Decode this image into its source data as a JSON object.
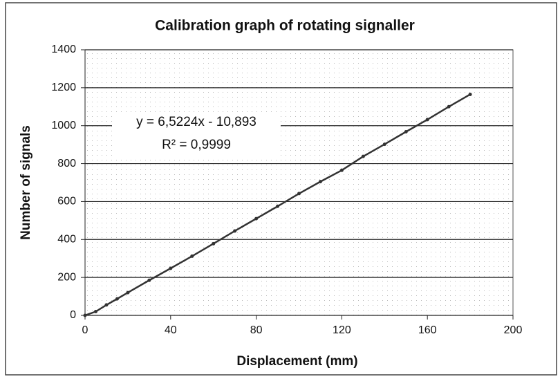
{
  "chart_data": {
    "type": "scatter",
    "title": "Calibration graph of rotating signaller",
    "x_label": "Displacement (mm)",
    "y_label": "Number of signals",
    "equation": "y = 6,5224x - 10,893",
    "r_squared": "R² = 0,9999",
    "x": [
      0,
      5,
      10,
      15,
      20,
      30,
      40,
      50,
      60,
      70,
      80,
      90,
      100,
      110,
      120,
      130,
      140,
      150,
      160,
      170,
      180
    ],
    "series": [
      {
        "color": "#333333",
        "values": [
          0,
          20,
          55,
          87,
          120,
          185,
          248,
          312,
          378,
          445,
          510,
          575,
          642,
          705,
          765,
          838,
          902,
          968,
          1032,
          1100,
          1165
        ]
      }
    ],
    "xlim": [
      0,
      200
    ],
    "xticks": [
      0,
      40,
      80,
      120,
      160,
      200
    ],
    "ylim": [
      0,
      1400
    ],
    "yticks": [
      0,
      200,
      400,
      600,
      800,
      1000,
      1200,
      1400
    ],
    "grid": true
  }
}
